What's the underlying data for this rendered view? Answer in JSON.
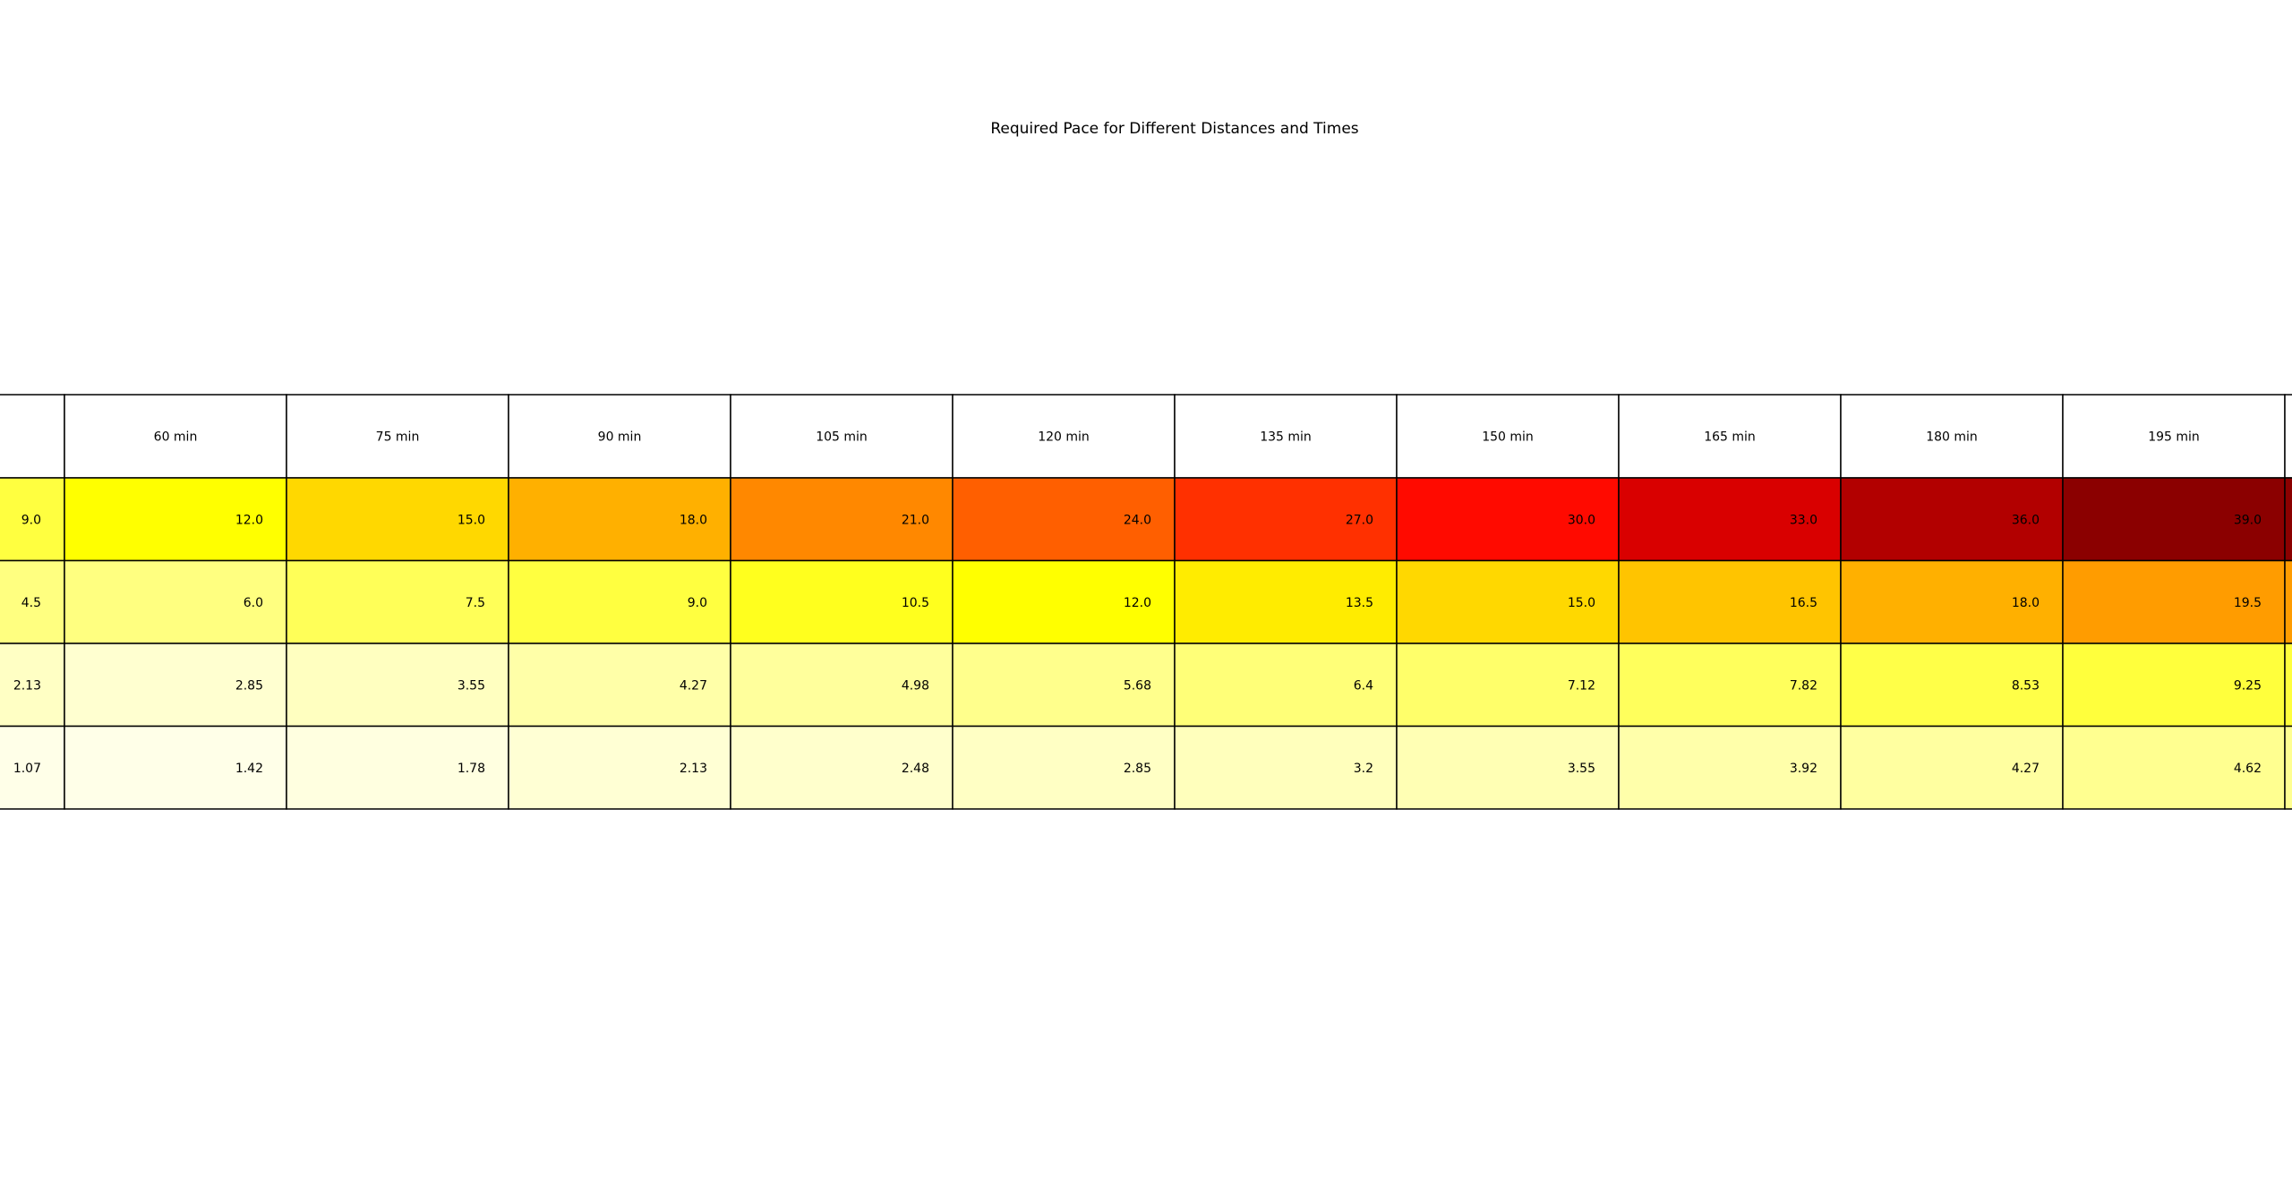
{
  "chart_data": {
    "type": "table",
    "title": "Required Pace for Different Distances and Times",
    "columns": [
      "60 min",
      "75 min",
      "90 min",
      "105 min",
      "120 min",
      "135 min",
      "150 min",
      "165 min",
      "180 min",
      "195 min"
    ],
    "rows": [
      {
        "first": "9.0",
        "values": [
          "12.0",
          "15.0",
          "18.0",
          "21.0",
          "24.0",
          "27.0",
          "30.0",
          "33.0",
          "36.0",
          "39.0"
        ]
      },
      {
        "first": "4.5",
        "values": [
          "6.0",
          "7.5",
          "9.0",
          "10.5",
          "12.0",
          "13.5",
          "15.0",
          "16.5",
          "18.0",
          "19.5"
        ]
      },
      {
        "first": "2.13",
        "values": [
          "2.85",
          "3.55",
          "4.27",
          "4.98",
          "5.68",
          "6.4",
          "7.12",
          "7.82",
          "8.53",
          "9.25"
        ]
      },
      {
        "first": "1.07",
        "values": [
          "1.42",
          "1.78",
          "2.13",
          "2.48",
          "2.85",
          "3.2",
          "3.55",
          "3.92",
          "4.27",
          "4.62"
        ]
      }
    ],
    "colormap": "YlOrRd-like (light yellow to dark red)",
    "cell_colors": {
      "header": "#ffffff",
      "first_column": [
        "#ffff40",
        "#ffff80",
        "#ffffc4",
        "#ffffe8"
      ],
      "values": [
        [
          "#ffff00",
          "#ffd800",
          "#ffb000",
          "#ff8800",
          "#ff5f00",
          "#ff3000",
          "#ff0a00",
          "#d90000",
          "#b20000",
          "#8b0000"
        ],
        [
          "#ffff80",
          "#ffff58",
          "#ffff40",
          "#ffff1e",
          "#ffff00",
          "#ffec00",
          "#ffd800",
          "#ffc400",
          "#ffb000",
          "#ff9c00"
        ],
        [
          "#ffffd0",
          "#ffffc0",
          "#ffffa8",
          "#ffff9c",
          "#ffff8c",
          "#ffff78",
          "#ffff6a",
          "#ffff5c",
          "#ffff48",
          "#ffff3c"
        ],
        [
          "#ffffe8",
          "#ffffe0",
          "#ffffd4",
          "#ffffcc",
          "#ffffc4",
          "#ffffbc",
          "#ffffb4",
          "#ffffaa",
          "#ffffa0",
          "#ffff90"
        ]
      ]
    },
    "border_color": "#000000",
    "text_color": "#000000",
    "light_text_on_dark_cells": "#8b0000"
  }
}
